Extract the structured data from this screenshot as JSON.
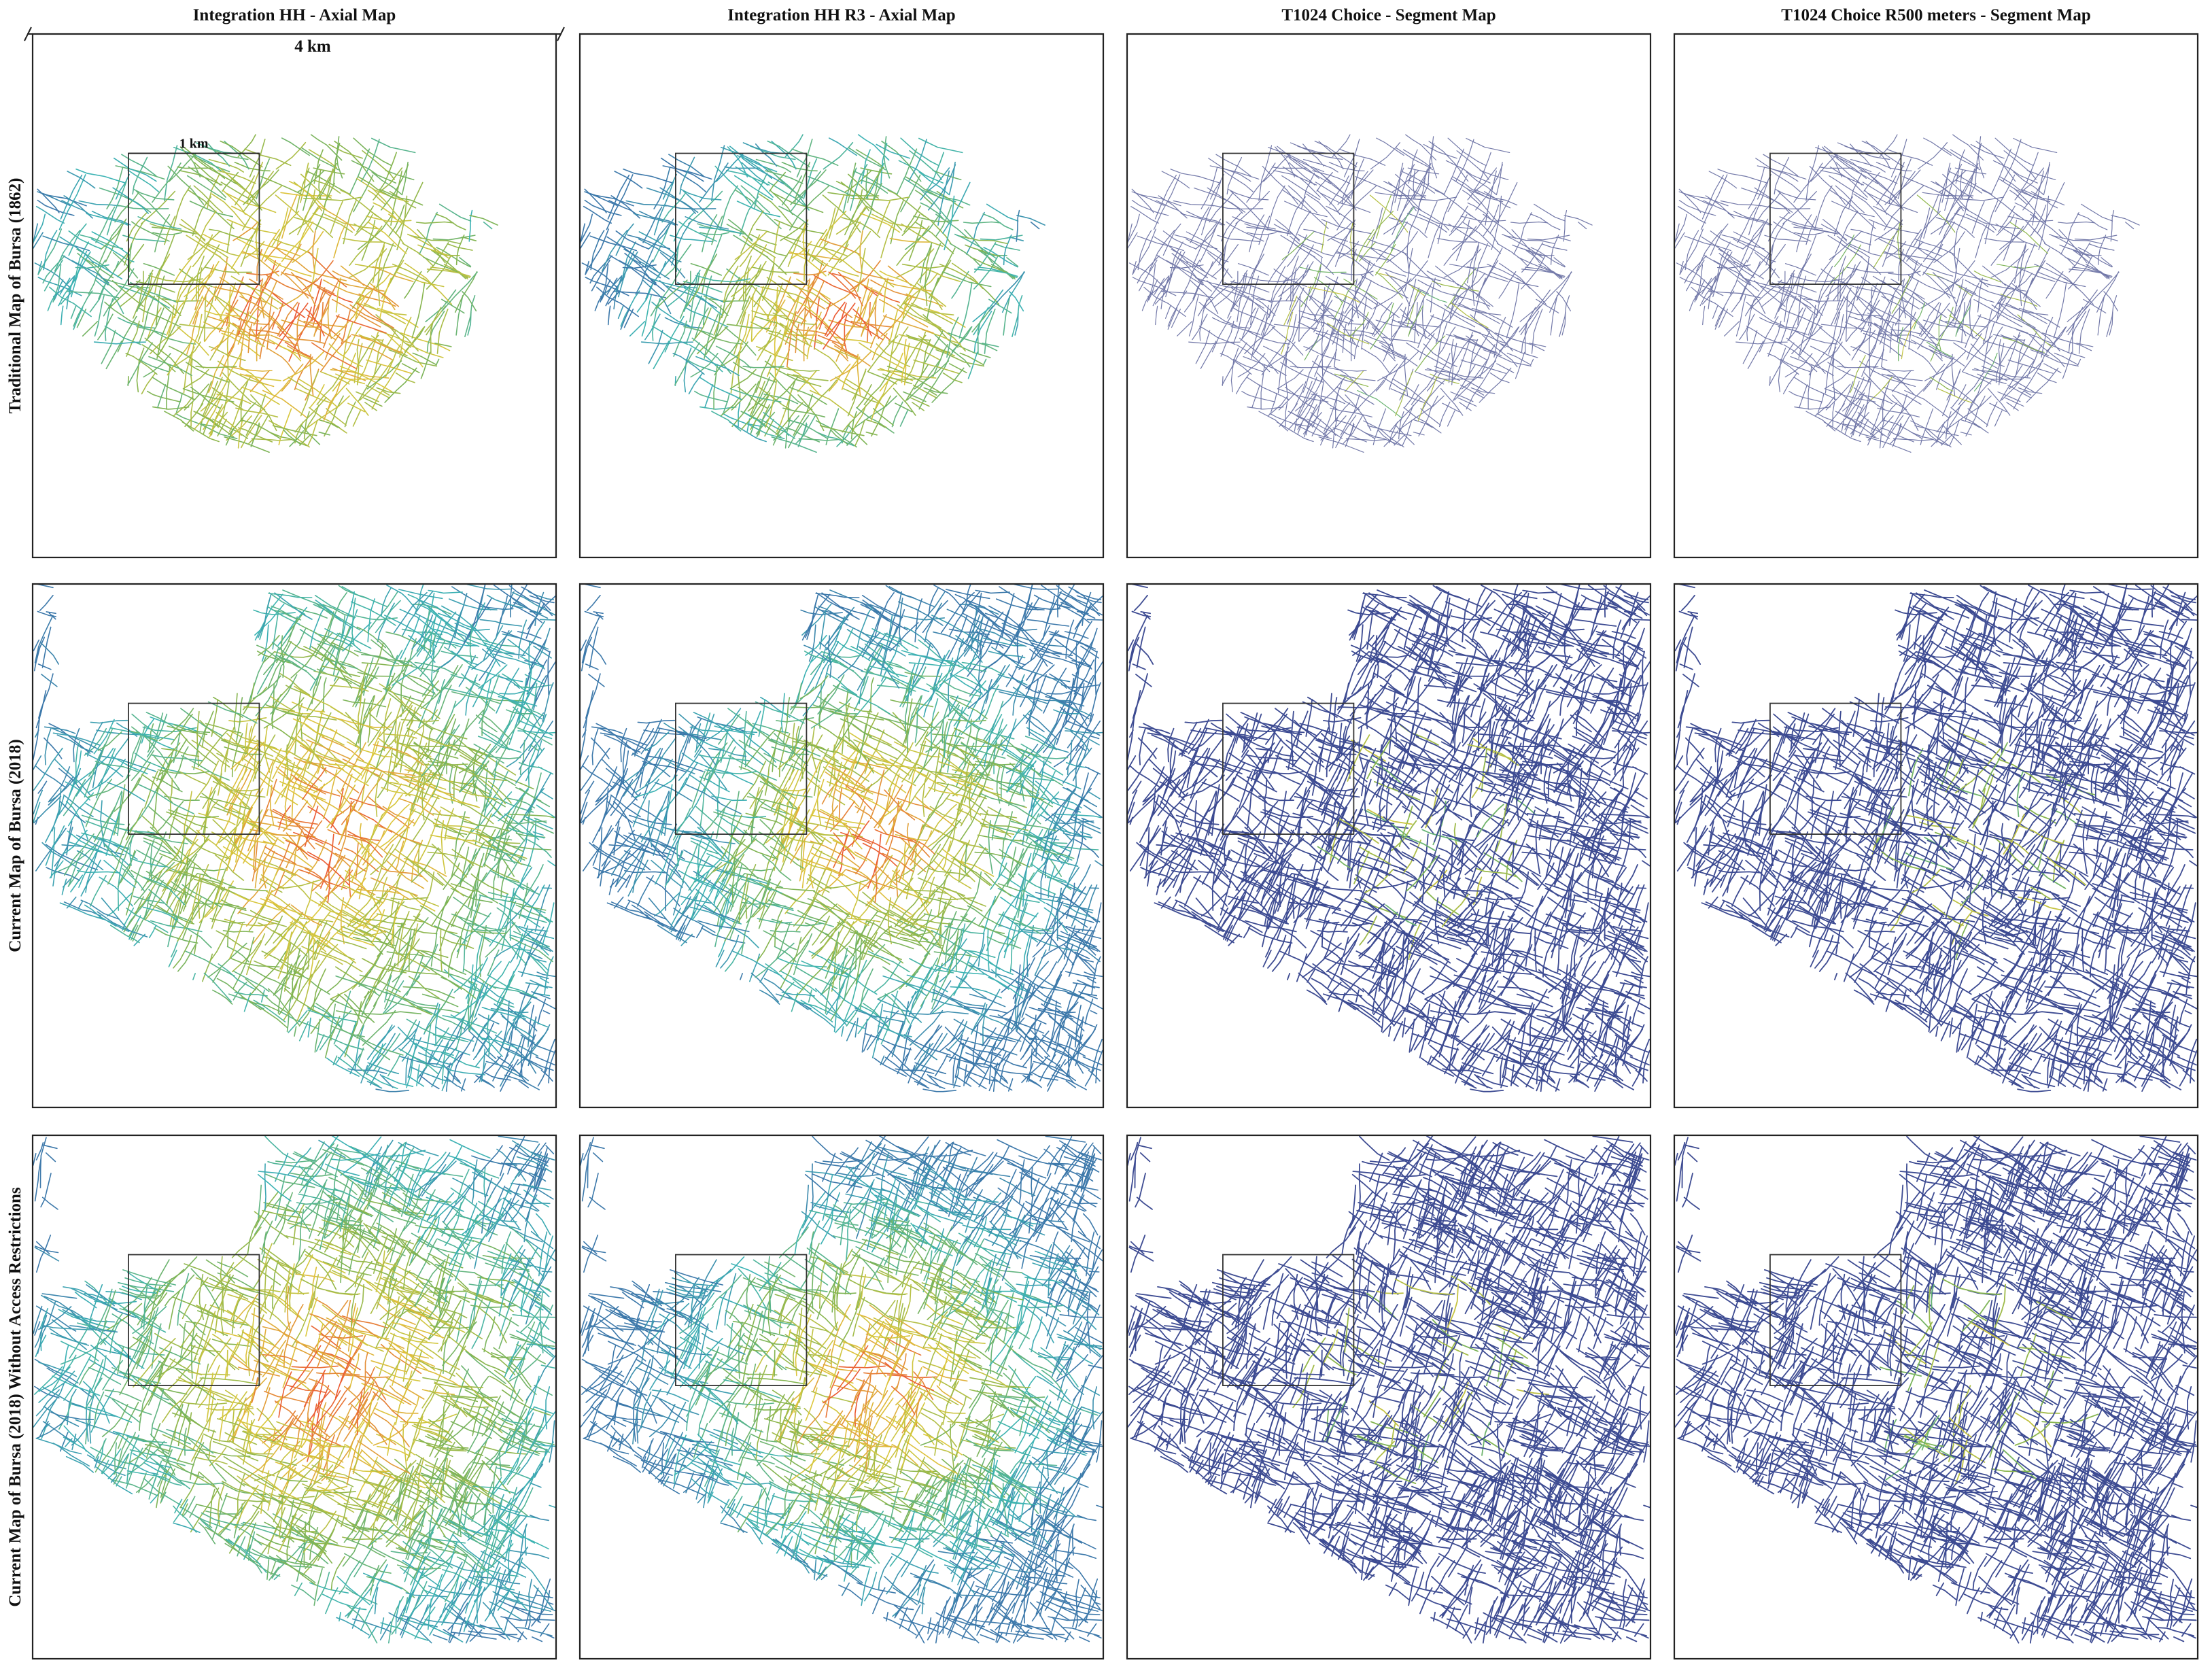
{
  "column_titles": [
    "Integration HH - Axial Map",
    "Integration HH R3 - Axial Map",
    "T1024 Choice - Segment Map",
    "T1024 Choice R500 meters - Segment Map"
  ],
  "row_labels": [
    "Traditional Map of Bursa (1862)",
    "Current Map of Bursa (2018)",
    "Current Map of Bursa (2018) Without Access Restrictions"
  ],
  "scale_bars": {
    "large": "4 km",
    "small": "1 km"
  }
}
